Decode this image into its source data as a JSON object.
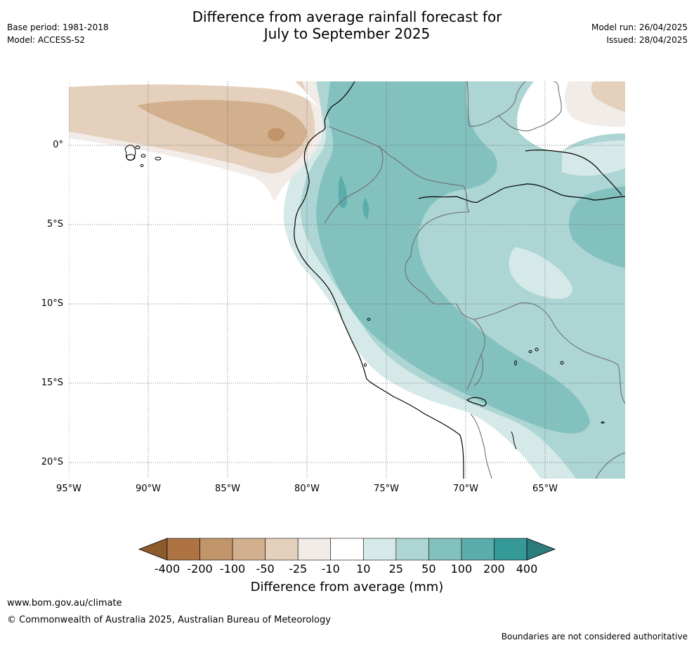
{
  "header": {
    "title_line1": "Difference from average rainfall forecast for",
    "title_line2": "July to September 2025",
    "base_period": "Base period: 1981-2018",
    "model": "Model: ACCESS-S2",
    "model_run": "Model run: 26/04/2025",
    "issued": "Issued: 28/04/2025"
  },
  "axes": {
    "lat_labels": [
      "0°",
      "5°S",
      "10°S",
      "15°S",
      "20°S"
    ],
    "lon_labels": [
      "95°W",
      "90°W",
      "85°W",
      "80°W",
      "75°W",
      "70°W",
      "65°W"
    ]
  },
  "colorbar": {
    "title": "Difference from average (mm)",
    "tick_labels": [
      "-400",
      "-200",
      "-100",
      "-50",
      "-25",
      "-10",
      "10",
      "25",
      "50",
      "100",
      "200",
      "400"
    ],
    "colors": [
      "#8c5a2b",
      "#ad7342",
      "#c1946a",
      "#d2b08e",
      "#e4d0bc",
      "#f2ece8",
      "#ffffff",
      "#d5e9e8",
      "#acd5d4",
      "#83c1bf",
      "#5aadab",
      "#359997",
      "#2a7d7b"
    ]
  },
  "footer": {
    "website": "www.bom.gov.au/climate",
    "copyright": "© Commonwealth of Australia 2025, Australian Bureau of Meteorology",
    "disclaimer": "Boundaries are not considered authoritative"
  }
}
